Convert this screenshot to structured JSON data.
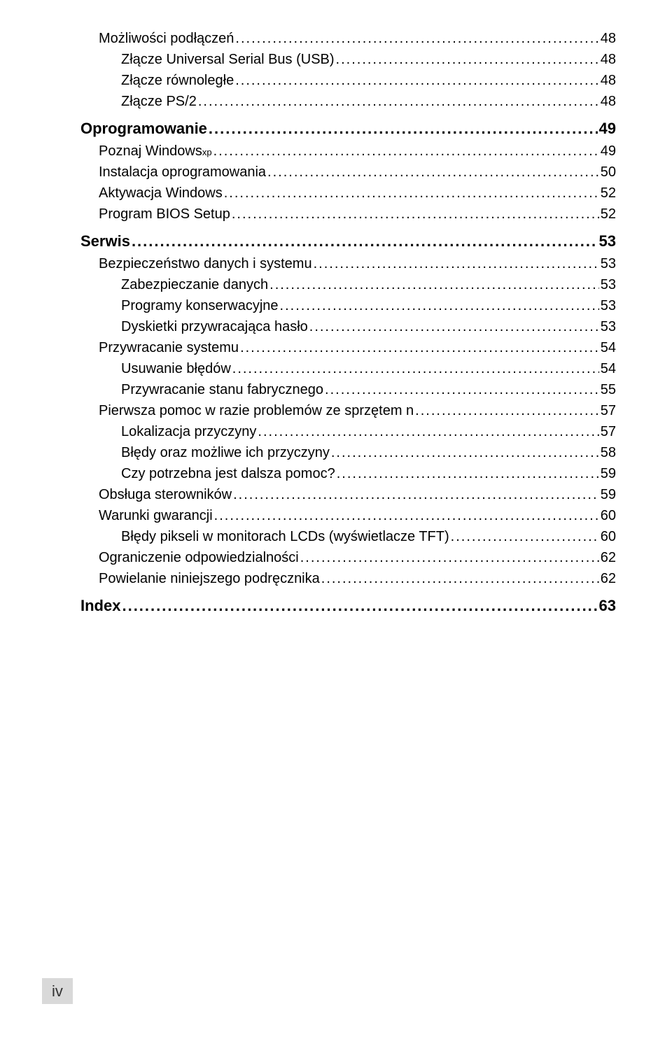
{
  "toc": {
    "entries": [
      {
        "level": 2,
        "label": "Możliwości podłączeń",
        "page": "48"
      },
      {
        "level": 3,
        "label": "Złącze Universal Serial Bus (USB)",
        "page": "48"
      },
      {
        "level": 3,
        "label": "Złącze równoległe",
        "page": "48"
      },
      {
        "level": 3,
        "label": "Złącze PS/2",
        "page": "48"
      },
      {
        "level": 1,
        "label": "Oprogramowanie",
        "page": "49"
      },
      {
        "level": 2,
        "label": "Poznaj Windows",
        "sup": "xp",
        "page": "49"
      },
      {
        "level": 2,
        "label": "Instalacja oprogramowania",
        "page": "50"
      },
      {
        "level": 2,
        "label": "Aktywacja Windows",
        "page": "52"
      },
      {
        "level": 2,
        "label": "Program BIOS Setup",
        "page": "52"
      },
      {
        "level": 1,
        "label": "Serwis",
        "page": "53"
      },
      {
        "level": 2,
        "label": "Bezpieczeństwo danych i systemu",
        "page": "53"
      },
      {
        "level": 3,
        "label": "Zabezpieczanie danych",
        "page": "53"
      },
      {
        "level": 3,
        "label": "Programy konserwacyjne",
        "page": "53"
      },
      {
        "level": 3,
        "label": "Dyskietki przywracająca hasło",
        "page": "53"
      },
      {
        "level": 2,
        "label": "Przywracanie systemu",
        "page": "54"
      },
      {
        "level": 3,
        "label": "Usuwanie błędów",
        "page": "54"
      },
      {
        "level": 3,
        "label": "Przywracanie stanu fabrycznego",
        "page": "55"
      },
      {
        "level": 2,
        "label": "Pierwsza pomoc w razie problemów ze sprzętem n",
        "page": "57"
      },
      {
        "level": 3,
        "label": "Lokalizacja przyczyny",
        "page": "57"
      },
      {
        "level": 3,
        "label": "Błędy oraz możliwe ich przyczyny",
        "page": "58"
      },
      {
        "level": 3,
        "label": "Czy potrzebna jest dalsza pomoc?",
        "page": "59"
      },
      {
        "level": 2,
        "label": "Obsługa sterowników",
        "page": "59"
      },
      {
        "level": 2,
        "label": "Warunki gwarancji",
        "page": "60"
      },
      {
        "level": 3,
        "label": "Błędy pikseli w monitorach LCDs (wyświetlacze TFT)",
        "page": "60"
      },
      {
        "level": 2,
        "label": "Ograniczenie odpowiedzialności",
        "page": "62"
      },
      {
        "level": 2,
        "label": "Powielanie niniejszego podręcznika",
        "page": "62"
      },
      {
        "level": 1,
        "label": "Index",
        "page": "63"
      }
    ]
  },
  "footer": {
    "page_number": "iv"
  }
}
